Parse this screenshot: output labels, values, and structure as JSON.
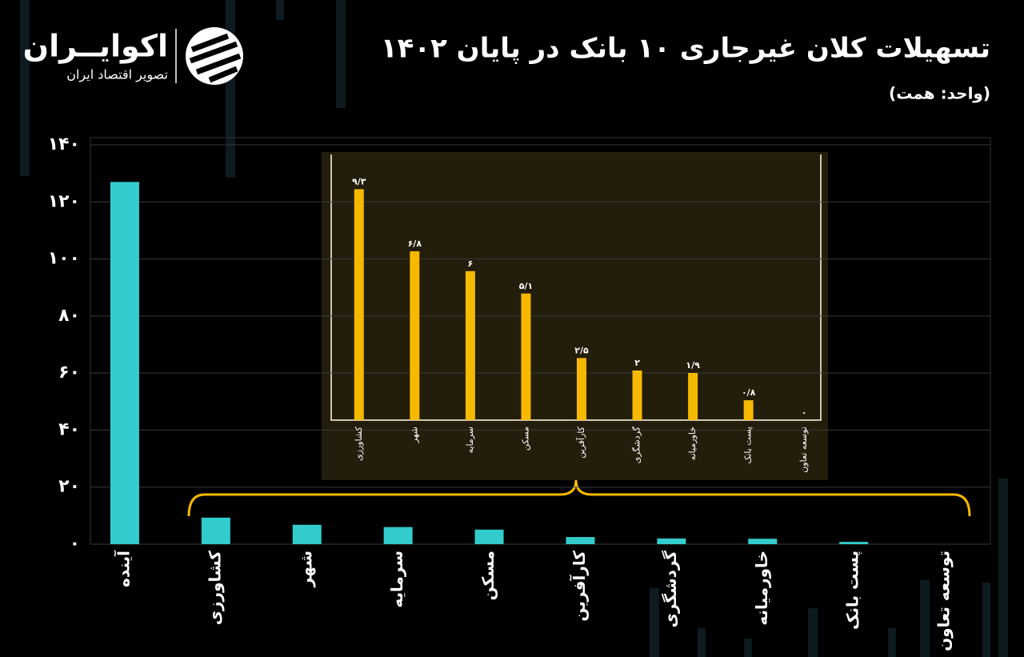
{
  "brand": {
    "name": "اکوایــران",
    "tagline": "تصویر اقتصاد ایران"
  },
  "chart_data": [
    {
      "type": "bar",
      "title": "تسهیلات کلان غیرجاری ۱۰ بانک در پایان ۱۴۰۲",
      "subtitle": "(واحد: همت)",
      "categories": [
        "آینده",
        "کشاورزی",
        "شهر",
        "سرمایه",
        "مسکن",
        "کارآفرین",
        "گردشگری",
        "خاورمیانه",
        "پست بانک",
        "توسعه تعاون"
      ],
      "values": [
        127,
        9.3,
        6.8,
        6,
        5.1,
        2.5,
        2,
        1.9,
        0.8,
        0
      ],
      "color": "#33cccc",
      "grid": true,
      "ylim": [
        0,
        140
      ],
      "yticks": [
        {
          "value": 0,
          "label": "۰"
        },
        {
          "value": 20,
          "label": "۲۰"
        },
        {
          "value": 40,
          "label": "۴۰"
        },
        {
          "value": 60,
          "label": "۶۰"
        },
        {
          "value": 80,
          "label": "۸۰"
        },
        {
          "value": 100,
          "label": "۱۰۰"
        },
        {
          "value": 120,
          "label": "۱۲۰"
        },
        {
          "value": 140,
          "label": "۱۴۰"
        }
      ]
    },
    {
      "type": "bar",
      "categories": [
        "کشاورزی",
        "شهر",
        "سرمایه",
        "مسکن",
        "کارآفرین",
        "گردشگری",
        "خاورمیانه",
        "پست بانک",
        "توسعه تعاون"
      ],
      "values": [
        9.3,
        6.8,
        6,
        5.1,
        2.5,
        2,
        1.9,
        0.8,
        0
      ],
      "value_labels": [
        "۹/۳",
        "۶/۸",
        "۶",
        "۵/۱",
        "۲/۵",
        "۲",
        "۱/۹",
        "۰/۸",
        "۰"
      ],
      "color": "#f7b900",
      "ylim": [
        0,
        10.7
      ]
    }
  ]
}
